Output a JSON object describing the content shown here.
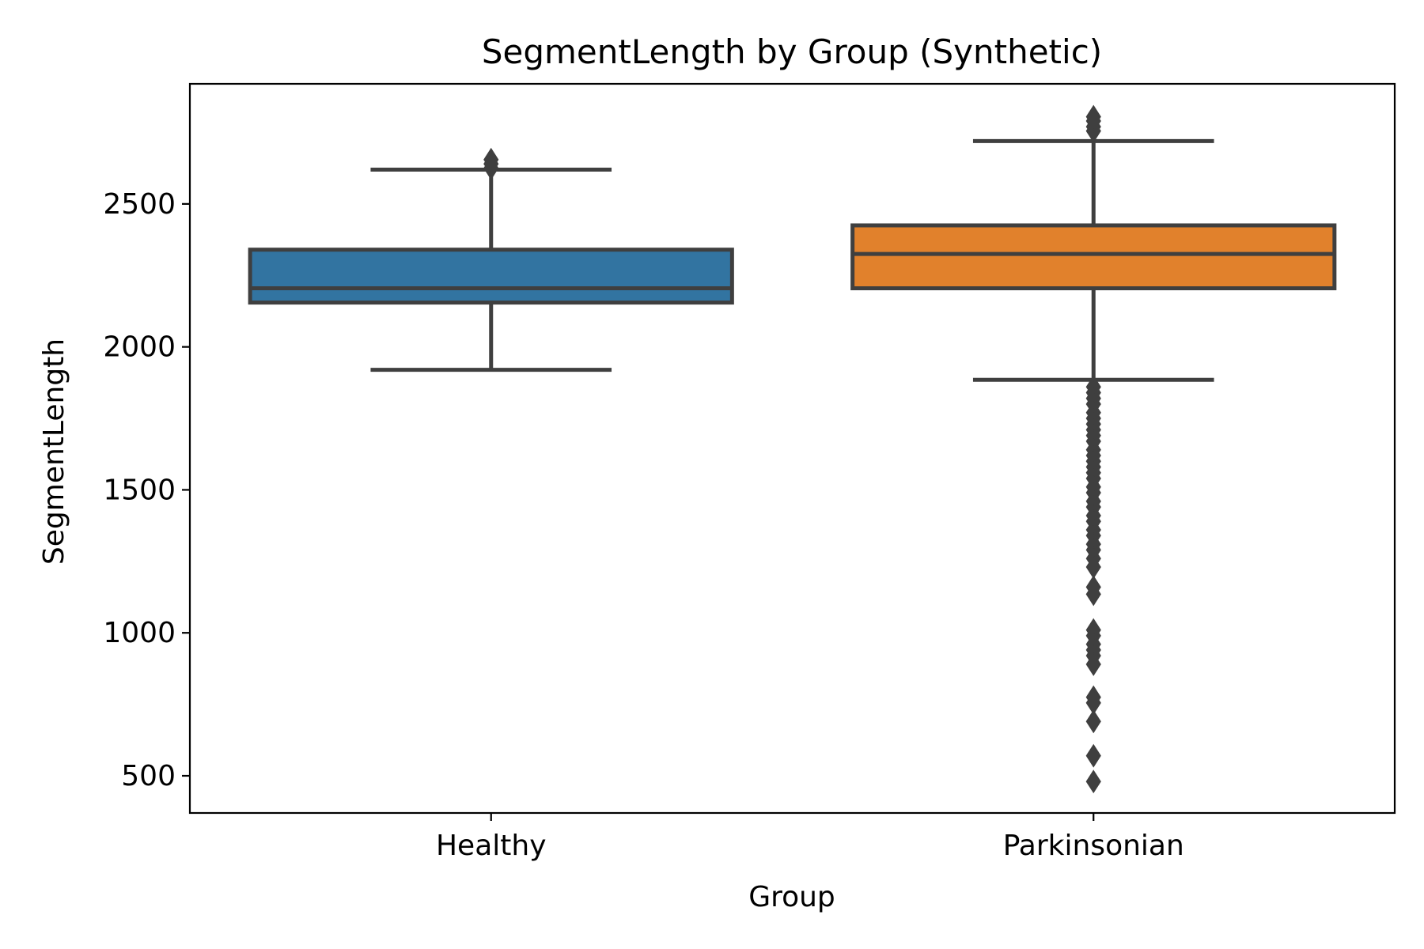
{
  "chart_data": {
    "type": "box",
    "title": "SegmentLength by Group (Synthetic)",
    "xlabel": "Group",
    "ylabel": "SegmentLength",
    "ylim": [
      370,
      2920
    ],
    "yticks": [
      500,
      1000,
      1500,
      2000,
      2500
    ],
    "ytick_labels": [
      "500",
      "1000",
      "1500",
      "2000",
      "2500"
    ],
    "grid": false,
    "legend": "none",
    "categories": [
      "Healthy",
      "Parkinsonian"
    ],
    "boxes": [
      {
        "category": "Healthy",
        "color": "#3274a1",
        "whisker_low": 1920,
        "q1": 2155,
        "median": 2205,
        "q3": 2340,
        "whisker_high": 2620,
        "outliers": [
          2625,
          2640,
          2655
        ]
      },
      {
        "category": "Parkinsonian",
        "color": "#e1812c",
        "whisker_low": 1885,
        "q1": 2205,
        "median": 2325,
        "q3": 2425,
        "whisker_high": 2720,
        "outliers": [
          2755,
          2770,
          2790,
          2805,
          1860,
          1840,
          1820,
          1800,
          1770,
          1750,
          1730,
          1710,
          1690,
          1670,
          1640,
          1620,
          1600,
          1580,
          1560,
          1540,
          1510,
          1490,
          1460,
          1440,
          1410,
          1390,
          1360,
          1340,
          1310,
          1290,
          1260,
          1230,
          1160,
          1135,
          1010,
          990,
          960,
          940,
          920,
          890,
          775,
          755,
          690,
          570,
          480
        ]
      }
    ]
  }
}
